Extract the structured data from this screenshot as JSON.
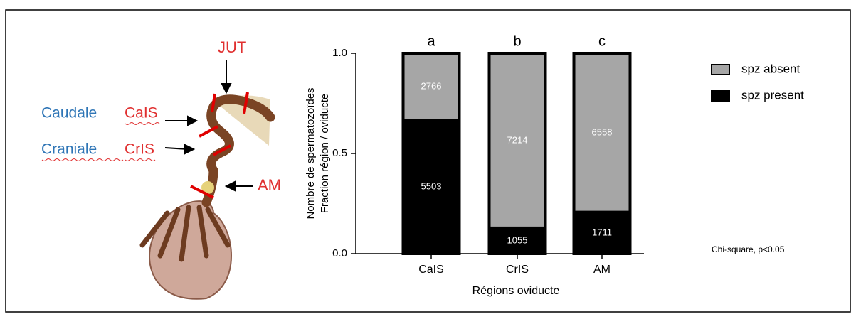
{
  "illustration": {
    "jut": "JUT",
    "caudale": "Caudale",
    "cais": "CaIS",
    "craniale": "Craniale",
    "cris": "CrIS",
    "am": "AM"
  },
  "chart_data": {
    "type": "bar",
    "stacked": true,
    "y_label": [
      "Nombre de spermatozoïdes",
      "Fraction région / oviducte"
    ],
    "x_label": "Régions oviducte",
    "categories": [
      "CaIS",
      "CrIS",
      "AM"
    ],
    "annotations": [
      "a",
      "b",
      "c"
    ],
    "series": [
      {
        "name": "spz present",
        "color": "#000000",
        "values": [
          0.665,
          0.128,
          0.207
        ],
        "counts": [
          5503,
          1055,
          1711
        ]
      },
      {
        "name": "spz absent",
        "color": "#a6a6a6",
        "values": [
          0.335,
          0.872,
          0.793
        ],
        "counts": [
          2766,
          7214,
          6558
        ]
      }
    ],
    "ylim": [
      0,
      1
    ],
    "yticks": [
      {
        "value": 0,
        "label": "0.0"
      },
      {
        "value": 0.5,
        "label": "0.5"
      },
      {
        "value": 1,
        "label": "1.0"
      }
    ],
    "legend": "right",
    "note": "Chi-square, p<0.05"
  }
}
